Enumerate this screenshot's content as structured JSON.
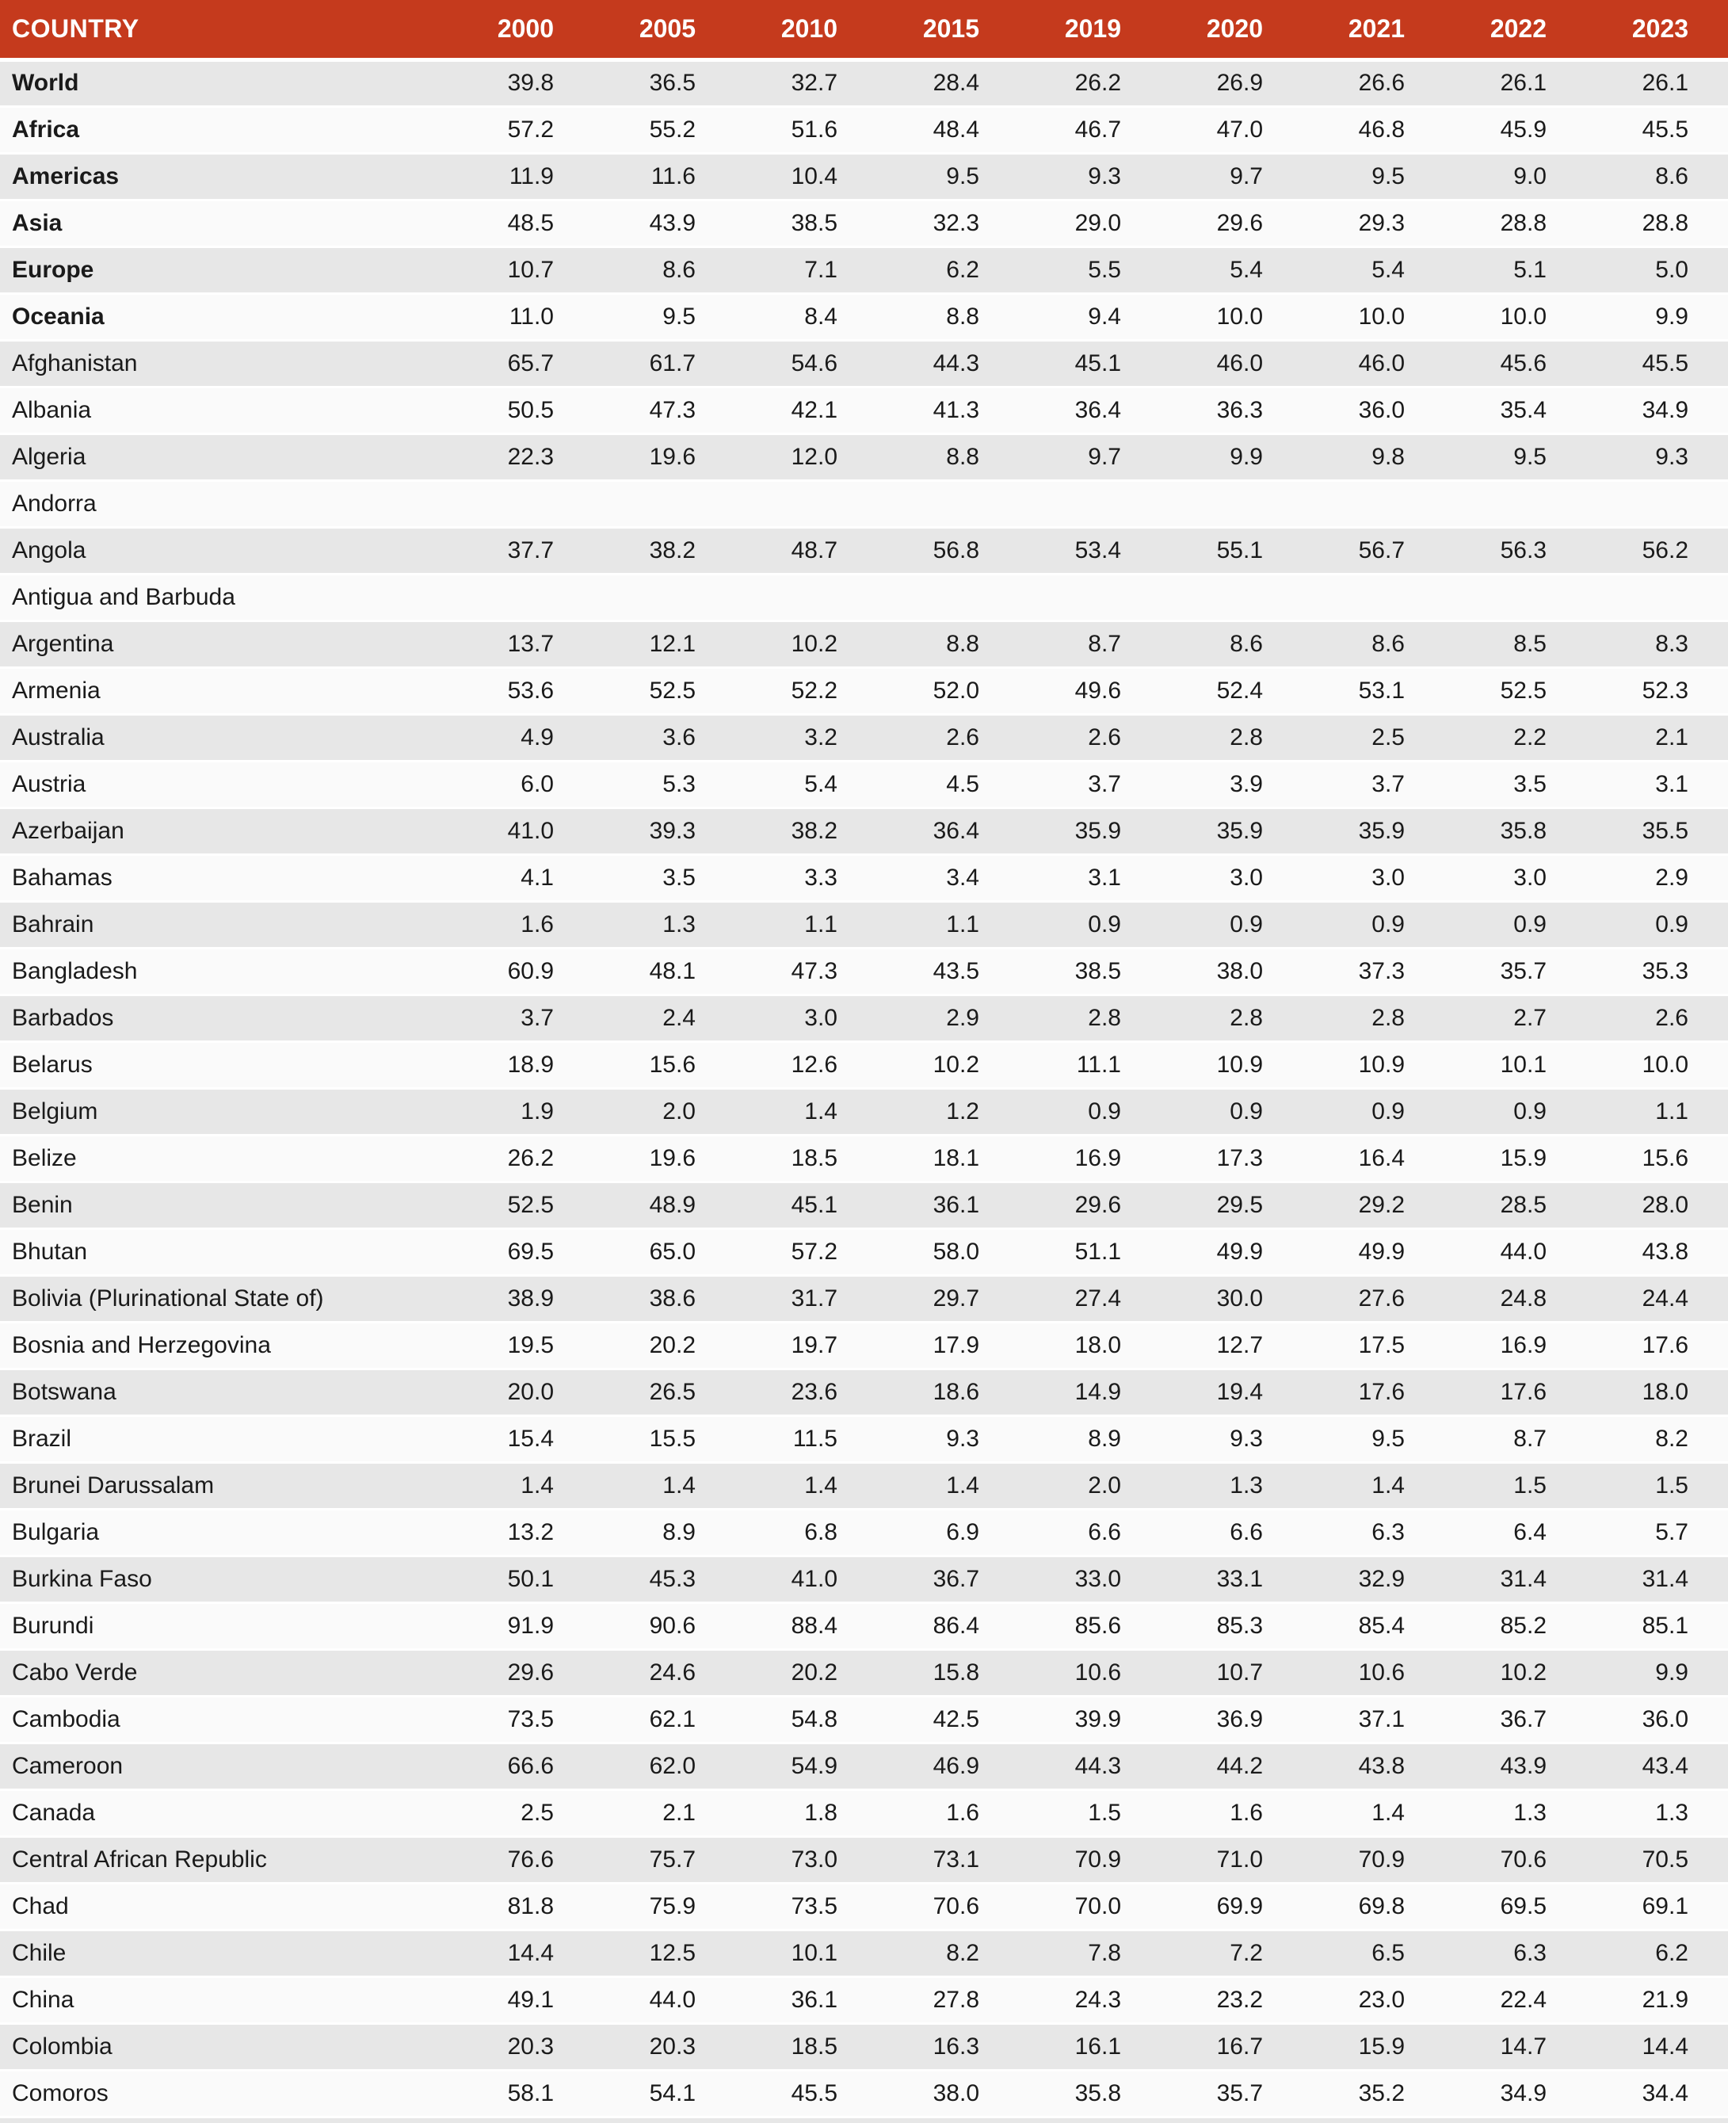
{
  "colors": {
    "header_bg": "#C53A1D",
    "header_text": "#FFFFFF",
    "row_odd": "#E7E7E7",
    "row_even": "#FAFAFA",
    "separator": "#FFFFFF",
    "text": "#1A1A1A"
  },
  "chart_data": {
    "type": "table",
    "title": "",
    "columns": {
      "country_label": "COUNTRY",
      "years": [
        "2000",
        "2005",
        "2010",
        "2015",
        "2019",
        "2020",
        "2021",
        "2022",
        "2023"
      ]
    },
    "rows": [
      {
        "name": "World",
        "bold": true,
        "values": [
          "39.8",
          "36.5",
          "32.7",
          "28.4",
          "26.2",
          "26.9",
          "26.6",
          "26.1",
          "26.1"
        ]
      },
      {
        "name": "Africa",
        "bold": true,
        "values": [
          "57.2",
          "55.2",
          "51.6",
          "48.4",
          "46.7",
          "47.0",
          "46.8",
          "45.9",
          "45.5"
        ]
      },
      {
        "name": "Americas",
        "bold": true,
        "values": [
          "11.9",
          "11.6",
          "10.4",
          "9.5",
          "9.3",
          "9.7",
          "9.5",
          "9.0",
          "8.6"
        ]
      },
      {
        "name": "Asia",
        "bold": true,
        "values": [
          "48.5",
          "43.9",
          "38.5",
          "32.3",
          "29.0",
          "29.6",
          "29.3",
          "28.8",
          "28.8"
        ]
      },
      {
        "name": "Europe",
        "bold": true,
        "values": [
          "10.7",
          "8.6",
          "7.1",
          "6.2",
          "5.5",
          "5.4",
          "5.4",
          "5.1",
          "5.0"
        ]
      },
      {
        "name": "Oceania",
        "bold": true,
        "values": [
          "11.0",
          "9.5",
          "8.4",
          "8.8",
          "9.4",
          "10.0",
          "10.0",
          "10.0",
          "9.9"
        ]
      },
      {
        "name": "Afghanistan",
        "bold": false,
        "values": [
          "65.7",
          "61.7",
          "54.6",
          "44.3",
          "45.1",
          "46.0",
          "46.0",
          "45.6",
          "45.5"
        ]
      },
      {
        "name": "Albania",
        "bold": false,
        "values": [
          "50.5",
          "47.3",
          "42.1",
          "41.3",
          "36.4",
          "36.3",
          "36.0",
          "35.4",
          "34.9"
        ]
      },
      {
        "name": "Algeria",
        "bold": false,
        "values": [
          "22.3",
          "19.6",
          "12.0",
          "8.8",
          "9.7",
          "9.9",
          "9.8",
          "9.5",
          "9.3"
        ]
      },
      {
        "name": "Andorra",
        "bold": false,
        "values": [
          "",
          "",
          "",
          "",
          "",
          "",
          "",
          "",
          ""
        ]
      },
      {
        "name": "Angola",
        "bold": false,
        "values": [
          "37.7",
          "38.2",
          "48.7",
          "56.8",
          "53.4",
          "55.1",
          "56.7",
          "56.3",
          "56.2"
        ]
      },
      {
        "name": "Antigua and Barbuda",
        "bold": false,
        "values": [
          "",
          "",
          "",
          "",
          "",
          "",
          "",
          "",
          ""
        ]
      },
      {
        "name": "Argentina",
        "bold": false,
        "values": [
          "13.7",
          "12.1",
          "10.2",
          "8.8",
          "8.7",
          "8.6",
          "8.6",
          "8.5",
          "8.3"
        ]
      },
      {
        "name": "Armenia",
        "bold": false,
        "values": [
          "53.6",
          "52.5",
          "52.2",
          "52.0",
          "49.6",
          "52.4",
          "53.1",
          "52.5",
          "52.3"
        ]
      },
      {
        "name": "Australia",
        "bold": false,
        "values": [
          "4.9",
          "3.6",
          "3.2",
          "2.6",
          "2.6",
          "2.8",
          "2.5",
          "2.2",
          "2.1"
        ]
      },
      {
        "name": "Austria",
        "bold": false,
        "values": [
          "6.0",
          "5.3",
          "5.4",
          "4.5",
          "3.7",
          "3.9",
          "3.7",
          "3.5",
          "3.1"
        ]
      },
      {
        "name": "Azerbaijan",
        "bold": false,
        "values": [
          "41.0",
          "39.3",
          "38.2",
          "36.4",
          "35.9",
          "35.9",
          "35.9",
          "35.8",
          "35.5"
        ]
      },
      {
        "name": "Bahamas",
        "bold": false,
        "values": [
          "4.1",
          "3.5",
          "3.3",
          "3.4",
          "3.1",
          "3.0",
          "3.0",
          "3.0",
          "2.9"
        ]
      },
      {
        "name": "Bahrain",
        "bold": false,
        "values": [
          "1.6",
          "1.3",
          "1.1",
          "1.1",
          "0.9",
          "0.9",
          "0.9",
          "0.9",
          "0.9"
        ]
      },
      {
        "name": "Bangladesh",
        "bold": false,
        "values": [
          "60.9",
          "48.1",
          "47.3",
          "43.5",
          "38.5",
          "38.0",
          "37.3",
          "35.7",
          "35.3"
        ]
      },
      {
        "name": "Barbados",
        "bold": false,
        "values": [
          "3.7",
          "2.4",
          "3.0",
          "2.9",
          "2.8",
          "2.8",
          "2.8",
          "2.7",
          "2.6"
        ]
      },
      {
        "name": "Belarus",
        "bold": false,
        "values": [
          "18.9",
          "15.6",
          "12.6",
          "10.2",
          "11.1",
          "10.9",
          "10.9",
          "10.1",
          "10.0"
        ]
      },
      {
        "name": "Belgium",
        "bold": false,
        "values": [
          "1.9",
          "2.0",
          "1.4",
          "1.2",
          "0.9",
          "0.9",
          "0.9",
          "0.9",
          "1.1"
        ]
      },
      {
        "name": "Belize",
        "bold": false,
        "values": [
          "26.2",
          "19.6",
          "18.5",
          "18.1",
          "16.9",
          "17.3",
          "16.4",
          "15.9",
          "15.6"
        ]
      },
      {
        "name": "Benin",
        "bold": false,
        "values": [
          "52.5",
          "48.9",
          "45.1",
          "36.1",
          "29.6",
          "29.5",
          "29.2",
          "28.5",
          "28.0"
        ]
      },
      {
        "name": "Bhutan",
        "bold": false,
        "values": [
          "69.5",
          "65.0",
          "57.2",
          "58.0",
          "51.1",
          "49.9",
          "49.9",
          "44.0",
          "43.8"
        ]
      },
      {
        "name": "Bolivia (Plurinational State of)",
        "bold": false,
        "values": [
          "38.9",
          "38.6",
          "31.7",
          "29.7",
          "27.4",
          "30.0",
          "27.6",
          "24.8",
          "24.4"
        ]
      },
      {
        "name": "Bosnia and Herzegovina",
        "bold": false,
        "values": [
          "19.5",
          "20.2",
          "19.7",
          "17.9",
          "18.0",
          "12.7",
          "17.5",
          "16.9",
          "17.6"
        ]
      },
      {
        "name": "Botswana",
        "bold": false,
        "values": [
          "20.0",
          "26.5",
          "23.6",
          "18.6",
          "14.9",
          "19.4",
          "17.6",
          "17.6",
          "18.0"
        ]
      },
      {
        "name": "Brazil",
        "bold": false,
        "values": [
          "15.4",
          "15.5",
          "11.5",
          "9.3",
          "8.9",
          "9.3",
          "9.5",
          "8.7",
          "8.2"
        ]
      },
      {
        "name": "Brunei Darussalam",
        "bold": false,
        "values": [
          "1.4",
          "1.4",
          "1.4",
          "1.4",
          "2.0",
          "1.3",
          "1.4",
          "1.5",
          "1.5"
        ]
      },
      {
        "name": "Bulgaria",
        "bold": false,
        "values": [
          "13.2",
          "8.9",
          "6.8",
          "6.9",
          "6.6",
          "6.6",
          "6.3",
          "6.4",
          "5.7"
        ]
      },
      {
        "name": "Burkina Faso",
        "bold": false,
        "values": [
          "50.1",
          "45.3",
          "41.0",
          "36.7",
          "33.0",
          "33.1",
          "32.9",
          "31.4",
          "31.4"
        ]
      },
      {
        "name": "Burundi",
        "bold": false,
        "values": [
          "91.9",
          "90.6",
          "88.4",
          "86.4",
          "85.6",
          "85.3",
          "85.4",
          "85.2",
          "85.1"
        ]
      },
      {
        "name": "Cabo Verde",
        "bold": false,
        "values": [
          "29.6",
          "24.6",
          "20.2",
          "15.8",
          "10.6",
          "10.7",
          "10.6",
          "10.2",
          "9.9"
        ]
      },
      {
        "name": "Cambodia",
        "bold": false,
        "values": [
          "73.5",
          "62.1",
          "54.8",
          "42.5",
          "39.9",
          "36.9",
          "37.1",
          "36.7",
          "36.0"
        ]
      },
      {
        "name": "Cameroon",
        "bold": false,
        "values": [
          "66.6",
          "62.0",
          "54.9",
          "46.9",
          "44.3",
          "44.2",
          "43.8",
          "43.9",
          "43.4"
        ]
      },
      {
        "name": "Canada",
        "bold": false,
        "values": [
          "2.5",
          "2.1",
          "1.8",
          "1.6",
          "1.5",
          "1.6",
          "1.4",
          "1.3",
          "1.3"
        ]
      },
      {
        "name": "Central African Republic",
        "bold": false,
        "values": [
          "76.6",
          "75.7",
          "73.0",
          "73.1",
          "70.9",
          "71.0",
          "70.9",
          "70.6",
          "70.5"
        ]
      },
      {
        "name": "Chad",
        "bold": false,
        "values": [
          "81.8",
          "75.9",
          "73.5",
          "70.6",
          "70.0",
          "69.9",
          "69.8",
          "69.5",
          "69.1"
        ]
      },
      {
        "name": "Chile",
        "bold": false,
        "values": [
          "14.4",
          "12.5",
          "10.1",
          "8.2",
          "7.8",
          "7.2",
          "6.5",
          "6.3",
          "6.2"
        ]
      },
      {
        "name": "China",
        "bold": false,
        "values": [
          "49.1",
          "44.0",
          "36.1",
          "27.8",
          "24.3",
          "23.2",
          "23.0",
          "22.4",
          "21.9"
        ]
      },
      {
        "name": "Colombia",
        "bold": false,
        "values": [
          "20.3",
          "20.3",
          "18.5",
          "16.3",
          "16.1",
          "16.7",
          "15.9",
          "14.7",
          "14.4"
        ]
      },
      {
        "name": "Comoros",
        "bold": false,
        "values": [
          "58.1",
          "54.1",
          "45.5",
          "38.0",
          "35.8",
          "35.7",
          "35.2",
          "34.9",
          "34.4"
        ]
      }
    ]
  }
}
